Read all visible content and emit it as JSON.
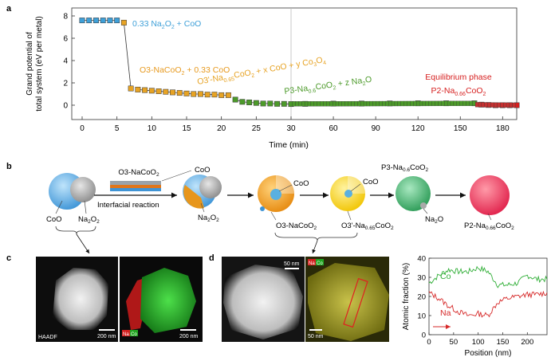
{
  "panels": {
    "a": "a",
    "b": "b",
    "c": "c",
    "d": "d"
  },
  "chart_data": [
    {
      "type": "line",
      "panel": "a",
      "xlabel": "Time (min)",
      "ylabel_line1": "Grand potential of",
      "ylabel_line2": "total system (eV per metal)",
      "xlim": [
        0,
        190
      ],
      "ylim": [
        -0.5,
        8
      ],
      "axis_break_at": 30,
      "x_ticks": [
        "0",
        "5",
        "10",
        "15",
        "20",
        "25",
        "30",
        "60",
        "90",
        "120",
        "150",
        "180"
      ],
      "y_ticks": [
        "0",
        "2",
        "4",
        "6",
        "8"
      ],
      "series": [
        {
          "color": "#3fa0d8",
          "x": [
            0,
            1,
            2,
            3,
            4,
            5
          ],
          "y": [
            7.6,
            7.6,
            7.6,
            7.6,
            7.6,
            7.6
          ]
        },
        {
          "color": "#e7a324",
          "x": [
            6,
            7
          ],
          "y": [
            7.4,
            1.5
          ]
        },
        {
          "color": "#e7a324",
          "x": [
            8,
            9,
            10,
            11,
            12,
            13,
            14,
            15,
            16,
            17,
            18,
            19,
            20,
            21
          ],
          "y": [
            1.4,
            1.35,
            1.3,
            1.25,
            1.2,
            1.15,
            1.1,
            1.05,
            1.0,
            1.0,
            0.95,
            0.95,
            0.9,
            0.9
          ]
        },
        {
          "color": "#4c9a2a",
          "x": [
            22,
            23,
            24,
            25,
            26,
            27,
            28,
            29,
            30
          ],
          "y": [
            0.5,
            0.3,
            0.25,
            0.2,
            0.15,
            0.15,
            0.12,
            0.12,
            0.1
          ]
        },
        {
          "color": "#4c9a2a",
          "x": [
            40,
            60,
            80,
            100,
            120,
            140,
            160
          ],
          "y": [
            0.12,
            0.14,
            0.15,
            0.16,
            0.17,
            0.17,
            0.17
          ]
        },
        {
          "color": "#d62020",
          "x": [
            165,
            170,
            175,
            180,
            185,
            190
          ],
          "y": [
            0.05,
            0.02,
            0.0,
            0.0,
            0.0,
            0.0
          ]
        }
      ],
      "annotations": {
        "init": "0.33 Na2O2 + CoO",
        "o3": "O3-NaCoO2 + 0.33 CoO",
        "o3p": "O3'-Na0.65CoO2 + x CoO + y Co3O4",
        "p3": "P3-Na0.6CoO2 + z Na2O",
        "eq_title": "Equilibrium phase",
        "eq": "P2-Na0.66CoO2"
      },
      "colors": {
        "blue": "#3fa0d8",
        "orange": "#e79a20",
        "green": "#4c9a2a",
        "red": "#d62020"
      }
    },
    {
      "type": "line",
      "panel": "d-right",
      "xlabel": "Position (nm)",
      "ylabel": "Atomic fraction (%)",
      "xlim": [
        0,
        240
      ],
      "ylim": [
        0,
        40
      ],
      "x_ticks": [
        "0",
        "50",
        "100",
        "150",
        "200"
      ],
      "y_ticks": [
        "0",
        "10",
        "20",
        "30",
        "40"
      ],
      "series": [
        {
          "name": "Co",
          "color": "#2fae36",
          "x": [
            0,
            20,
            40,
            60,
            80,
            100,
            120,
            140,
            160,
            180,
            200,
            220,
            240
          ],
          "y": [
            27,
            31,
            34,
            33,
            33,
            35,
            33,
            26,
            26,
            27,
            31,
            29,
            29
          ]
        },
        {
          "name": "Na",
          "color": "#d62828",
          "x": [
            0,
            20,
            40,
            60,
            80,
            100,
            120,
            140,
            160,
            180,
            200,
            220,
            240
          ],
          "y": [
            22,
            19,
            15,
            12,
            10,
            11,
            10,
            17,
            19,
            20,
            21,
            21,
            22
          ]
        }
      ]
    }
  ],
  "schematic": {
    "labels": {
      "coo_top": "CoO",
      "o3_top": "O3-NaCoO2",
      "coo1": "CoO",
      "reaction": "Interfacial reaction",
      "na2o2_left": "Na2O2",
      "coo_left": "CoO",
      "na2o2_mid": "Na2O2",
      "coo2": "CoO",
      "coo3": "CoO",
      "o3_bottom": "O3-NaCoO2",
      "o3p_bottom": "O3'-Na0.65CoO2",
      "p3_top": "P3-Na0.6CoO2",
      "na2o": "Na2O",
      "p2": "P2-Na0.66CoO2"
    }
  },
  "images": {
    "haadf": "HAADF",
    "scale_200_a": "200 nm",
    "scale_200_b": "200 nm",
    "scale_50_a": "50 nm",
    "scale_50_b": "50 nm",
    "na": "Na",
    "co": "Co"
  }
}
